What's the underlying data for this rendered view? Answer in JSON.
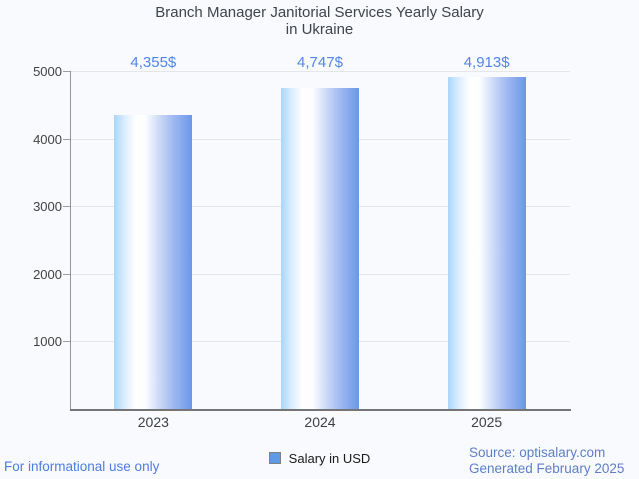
{
  "chart_data": {
    "type": "bar",
    "title": "Branch Manager Janitorial Services Yearly Salary in Ukraine",
    "title_lines": [
      "Branch Manager Janitorial Services Yearly Salary",
      "in Ukraine"
    ],
    "categories": [
      "2023",
      "2024",
      "2025"
    ],
    "values": [
      4355,
      4747,
      4913
    ],
    "value_labels": [
      "4,355$",
      "4,747$",
      "4,913$"
    ],
    "legend": {
      "label": "Salary in USD",
      "position": "bottom"
    },
    "xlabel": "",
    "ylabel": "",
    "ylim": [
      0,
      5000
    ],
    "yticks": [
      1000,
      2000,
      3000,
      4000,
      5000
    ],
    "grid": true
  },
  "footer": {
    "left": "For informational use only",
    "source": "Source: optisalary.com",
    "generated": "Generated February 2025"
  },
  "colors": {
    "background": "#f9fafd",
    "title_text": "#3f4549",
    "axis_text": "#424242",
    "value_label": "#5285e8",
    "bar_gradient_left": "#a9d6fb",
    "bar_gradient_mid": "#ffffff",
    "bar_gradient_right": "#6b97e8",
    "legend_swatch": "#5f9ae4",
    "gridline": "#e4e7ea",
    "axis_line": "#757575",
    "footer_left_text": "#4d7ce2",
    "footer_right_text": "#5d7ec9"
  }
}
